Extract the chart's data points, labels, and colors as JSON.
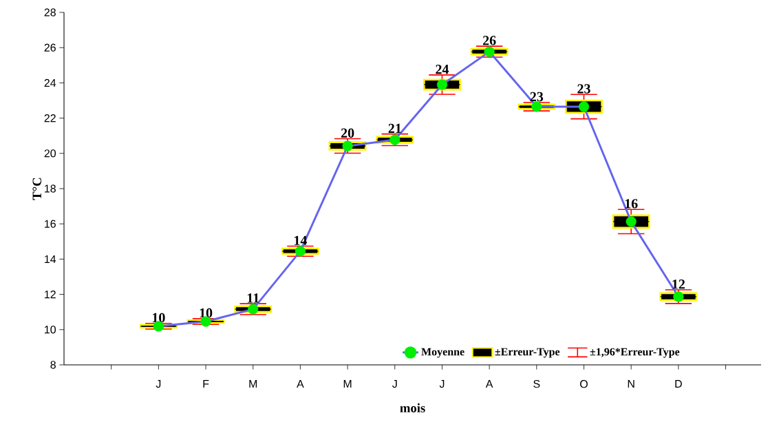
{
  "chart_data": {
    "type": "box",
    "xlabel": "mois",
    "ylabel": "T°C",
    "categories": [
      "J",
      "F",
      "M",
      "A",
      "M",
      "J",
      "J",
      "A",
      "S",
      "O",
      "N",
      "D"
    ],
    "ylim": [
      8,
      28
    ],
    "yticks": [
      8,
      10,
      12,
      14,
      16,
      18,
      20,
      22,
      24,
      26,
      28
    ],
    "legend": "bottom right",
    "grid": false,
    "annotations": [
      "±1,96*Erreur-Type"
    ],
    "series": [
      {
        "name": "Moyenne",
        "type": "line",
        "color": "#6464f0",
        "colors": [
          "#00ee00",
          "#00ee00",
          "#00ee00",
          "#00ee00",
          "#00ee00",
          "#00ee00",
          "#00ee00",
          "#00ee00",
          "#00ee00",
          "#00ee00",
          "#00ee00",
          "#00ee00"
        ],
        "marker": "circle",
        "values": [
          10.19,
          10.46,
          11.16,
          14.45,
          20.42,
          20.77,
          23.9,
          25.77,
          22.65,
          22.65,
          16.13,
          11.87
        ],
        "value_labels": [
          "10",
          "10",
          "11",
          "14",
          "20",
          "21",
          "24",
          "26",
          "23",
          "23",
          "16",
          "12"
        ]
      },
      {
        "name": "±Erreur-Type",
        "type": "box",
        "color": "#000000",
        "boxes": [
          {
            "low": 10.03,
            "q1": 10.11,
            "median": 10.19,
            "q3": 10.27,
            "high": 10.35
          },
          {
            "low": 10.3,
            "q1": 10.38,
            "median": 10.46,
            "q3": 10.54,
            "high": 10.62
          },
          {
            "low": 10.85,
            "q1": 11.0,
            "median": 11.16,
            "q3": 11.32,
            "high": 11.47
          },
          {
            "low": 14.16,
            "q1": 14.3,
            "median": 14.45,
            "q3": 14.6,
            "high": 14.74
          },
          {
            "low": 20.01,
            "q1": 20.21,
            "median": 20.42,
            "q3": 20.63,
            "high": 20.83
          },
          {
            "low": 20.44,
            "q1": 20.6,
            "median": 20.77,
            "q3": 20.94,
            "high": 21.1
          },
          {
            "low": 23.35,
            "q1": 23.62,
            "median": 23.9,
            "q3": 24.18,
            "high": 24.45
          },
          {
            "low": 25.46,
            "q1": 25.61,
            "median": 25.77,
            "q3": 25.93,
            "high": 26.08
          },
          {
            "low": 22.41,
            "q1": 22.53,
            "median": 22.65,
            "q3": 22.77,
            "high": 22.89
          },
          {
            "low": 21.96,
            "q1": 22.3,
            "median": 22.65,
            "q3": 23.0,
            "high": 23.34
          },
          {
            "low": 15.44,
            "q1": 15.78,
            "median": 16.13,
            "q3": 16.48,
            "high": 16.82
          },
          {
            "low": 11.48,
            "q1": 11.67,
            "median": 11.87,
            "q3": 12.07,
            "high": 12.26
          }
        ]
      }
    ]
  }
}
